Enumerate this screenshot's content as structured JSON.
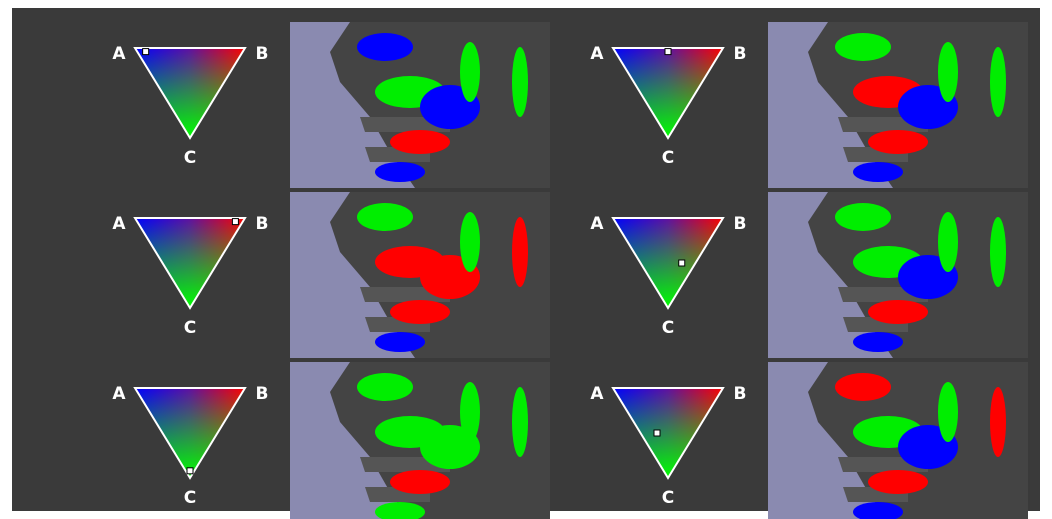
{
  "panels": [
    {
      "a": "A",
      "b": "B",
      "c": "C"
    },
    {
      "a": "A",
      "b": "B",
      "c": "C"
    },
    {
      "a": "A",
      "b": "B",
      "c": "C"
    },
    {
      "a": "A",
      "b": "B",
      "c": "C"
    },
    {
      "a": "A",
      "b": "B",
      "c": "C"
    },
    {
      "a": "A",
      "b": "B",
      "c": "C"
    }
  ]
}
